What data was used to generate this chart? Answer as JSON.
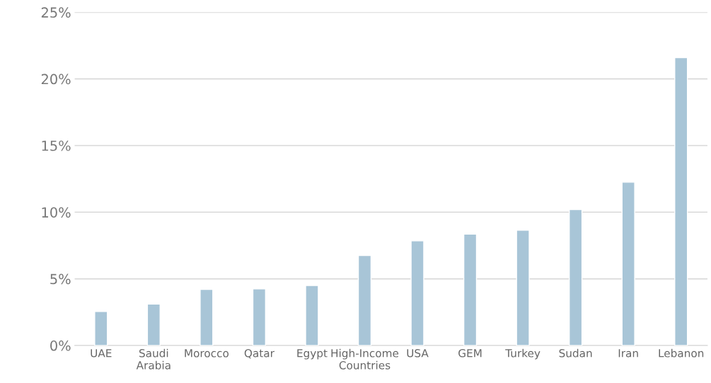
{
  "chart_data": {
    "type": "bar",
    "categories": [
      "UAE",
      "Saudi\nArabia",
      "Morocco",
      "Qatar",
      "Egypt",
      "High-Income\nCountries",
      "USA",
      "GEM",
      "Turkey",
      "Sudan",
      "Iran",
      "Lebanon"
    ],
    "values": [
      2.55,
      3.1,
      4.2,
      4.25,
      4.5,
      6.75,
      7.85,
      8.35,
      8.65,
      10.2,
      12.25,
      21.6
    ],
    "color": "#a8c5d7",
    "ylim": [
      0,
      25
    ],
    "yticks": [
      {
        "value": 0,
        "label": "0%"
      },
      {
        "value": 5,
        "label": "5%"
      },
      {
        "value": 10,
        "label": "10%"
      },
      {
        "value": 15,
        "label": "15%"
      },
      {
        "value": 20,
        "label": "20%"
      },
      {
        "value": 25,
        "label": "25%"
      }
    ],
    "grid": "y",
    "legend": false
  }
}
